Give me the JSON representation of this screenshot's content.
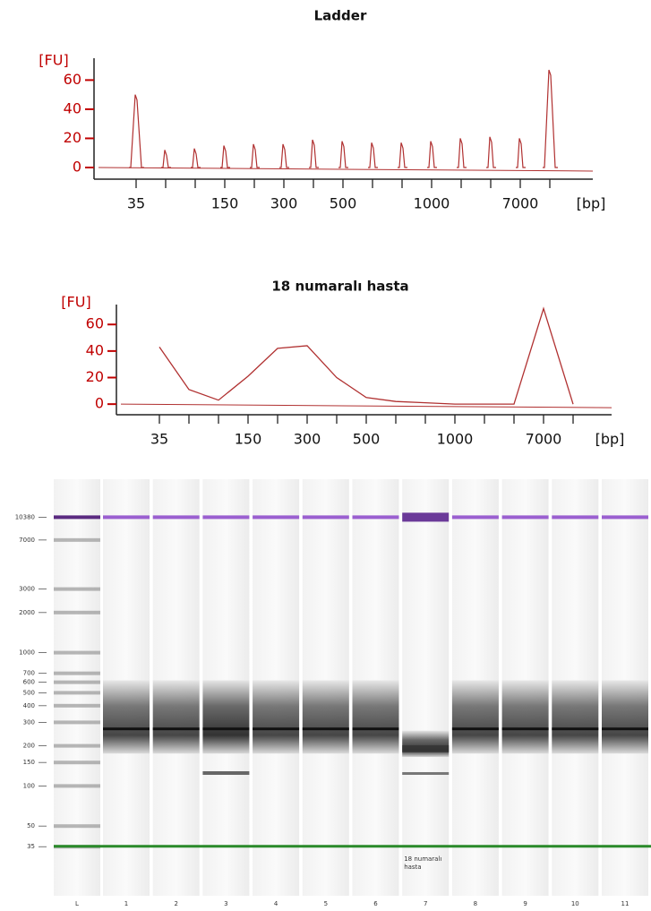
{
  "chart_data": [
    {
      "type": "peaks",
      "title": "Ladder",
      "y_label": "[FU]",
      "x_label": "[bp]",
      "categories": [
        "35",
        null,
        null,
        "150",
        null,
        "300",
        null,
        "500",
        null,
        null,
        "1000",
        null,
        null,
        "7000",
        null
      ],
      "series": [
        {
          "name": "Ladder",
          "color": "#b03030",
          "values": [
            50,
            12,
            13,
            15,
            16,
            16,
            19,
            18,
            17,
            17,
            18,
            20,
            21,
            20,
            67
          ]
        }
      ],
      "axis_color": "#c00000",
      "ylim": [
        -8,
        75
      ],
      "yticks": [
        0,
        20,
        40,
        60
      ]
    },
    {
      "type": "line",
      "title": "18 numaralı hasta",
      "y_label": "[FU]",
      "x_label": "[bp]",
      "categories": [
        "35",
        null,
        null,
        "150",
        null,
        "300",
        null,
        "500",
        null,
        null,
        "1000",
        null,
        null,
        "7000",
        null
      ],
      "series": [
        {
          "name": "18 numaralı hasta",
          "color": "#b03030",
          "values": [
            43,
            11,
            3,
            21,
            42,
            44,
            20,
            5,
            2,
            1,
            0,
            0,
            0,
            72,
            0
          ]
        }
      ],
      "axis_color": "#c00000",
      "ylim": [
        -8,
        75
      ],
      "yticks": [
        0,
        20,
        40,
        60
      ]
    },
    {
      "type": "gel",
      "categories": [
        "L",
        "1",
        "2",
        "3",
        "4",
        "5",
        "6",
        "7",
        "8",
        "9",
        "10",
        "11"
      ],
      "annotation": "18 numaralı hasta",
      "log_scale": true,
      "ylim": [
        15,
        20000
      ],
      "yticks": [
        10380,
        7000,
        3000,
        2000,
        1000,
        700,
        600,
        500,
        400,
        300,
        200,
        150,
        100,
        50,
        35
      ]
    }
  ]
}
